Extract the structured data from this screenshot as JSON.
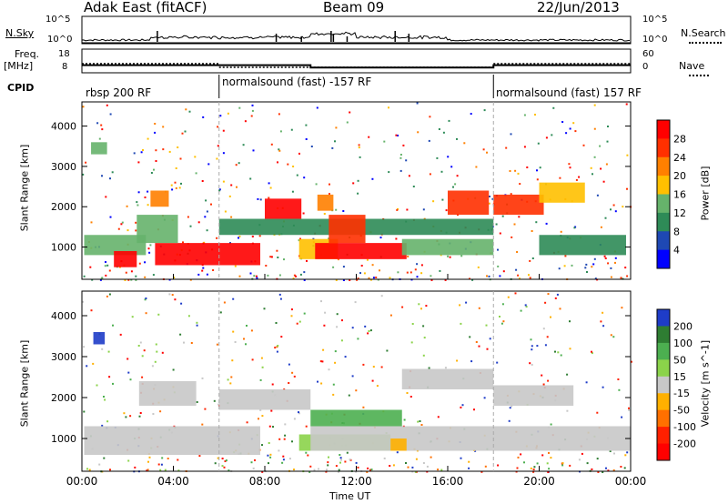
{
  "header": {
    "radar": "Adak East (fitACF)",
    "beam": "Beam 09",
    "date": "22/Jun/2013"
  },
  "top_panels": {
    "nsky_label": "N.Sky",
    "nsky_ticks": [
      "10^5",
      "10^0"
    ],
    "nsearch_label": "N.Search",
    "nsearch_ticks": [
      "10^5",
      "10^0"
    ],
    "freq_label": "Freq.",
    "freq_unit": "[MHz]",
    "freq_ticks": [
      "18",
      "8"
    ],
    "nave_label": "Nave",
    "nave_ticks": [
      "60",
      "0"
    ],
    "cpid_label": "CPID",
    "cpid_segments": [
      {
        "name": "rbsp 200 RF",
        "start_hour": 0
      },
      {
        "name": "normalsound (fast) -157 RF",
        "start_hour": 6
      },
      {
        "name": "normalsound (fast) 157 RF",
        "start_hour": 18
      }
    ],
    "freq_steps": [
      {
        "start_hour": 0,
        "end_hour": 10,
        "mhz": 11.2
      },
      {
        "start_hour": 10,
        "end_hour": 18,
        "mhz": 10.2
      },
      {
        "start_hour": 18,
        "end_hour": 24,
        "mhz": 11.2
      }
    ]
  },
  "chart_data": [
    {
      "type": "heatmap",
      "quantity": "Power",
      "ylabel": "Slant Range [km]",
      "yticks": [
        "1000",
        "2000",
        "3000",
        "4000"
      ],
      "ylim": [
        200,
        4600
      ],
      "xlim": [
        0,
        24
      ],
      "colorbar_label": "Power [dB]",
      "colorbar_ticks": [
        "4",
        "8",
        "12",
        "16",
        "20",
        "24",
        "28"
      ],
      "colors": [
        "#0000ff",
        "#1e48b4",
        "#2e8b57",
        "#66b36b",
        "#ffc000",
        "#ff8000",
        "#ff3000",
        "#ff0000"
      ],
      "regions": [
        {
          "start_hour": 0.1,
          "end_hour": 2.8,
          "range_low": 800,
          "range_high": 1300,
          "level": 3
        },
        {
          "start_hour": 1.4,
          "end_hour": 2.4,
          "range_low": 500,
          "range_high": 900,
          "level": 7
        },
        {
          "start_hour": 3.2,
          "end_hour": 7.8,
          "range_low": 550,
          "range_high": 1100,
          "level": 7
        },
        {
          "start_hour": 2.4,
          "end_hour": 4.2,
          "range_low": 1100,
          "range_high": 1800,
          "level": 3
        },
        {
          "start_hour": 3.0,
          "end_hour": 3.8,
          "range_low": 2000,
          "range_high": 2400,
          "level": 5
        },
        {
          "start_hour": 0.4,
          "end_hour": 1.1,
          "range_low": 3300,
          "range_high": 3600,
          "level": 3
        },
        {
          "start_hour": 6.0,
          "end_hour": 18.0,
          "range_low": 1300,
          "range_high": 1700,
          "level": 2
        },
        {
          "start_hour": 8.0,
          "end_hour": 9.6,
          "range_low": 1700,
          "range_high": 2200,
          "level": 7
        },
        {
          "start_hour": 9.5,
          "end_hour": 11.2,
          "range_low": 700,
          "range_high": 1200,
          "level": 4
        },
        {
          "start_hour": 10.2,
          "end_hour": 14.2,
          "range_low": 700,
          "range_high": 1100,
          "level": 7
        },
        {
          "start_hour": 10.8,
          "end_hour": 12.4,
          "range_low": 1100,
          "range_high": 1800,
          "level": 6
        },
        {
          "start_hour": 10.3,
          "end_hour": 11.0,
          "range_low": 1900,
          "range_high": 2300,
          "level": 5
        },
        {
          "start_hour": 14.0,
          "end_hour": 18.0,
          "range_low": 800,
          "range_high": 1200,
          "level": 3
        },
        {
          "start_hour": 16.0,
          "end_hour": 17.8,
          "range_low": 1800,
          "range_high": 2400,
          "level": 6
        },
        {
          "start_hour": 18.0,
          "end_hour": 20.2,
          "range_low": 1800,
          "range_high": 2300,
          "level": 6
        },
        {
          "start_hour": 20.0,
          "end_hour": 23.8,
          "range_low": 800,
          "range_high": 1300,
          "level": 2
        },
        {
          "start_hour": 20.0,
          "end_hour": 22.0,
          "range_low": 2100,
          "range_high": 2600,
          "level": 4
        }
      ]
    },
    {
      "type": "heatmap",
      "quantity": "Velocity",
      "ylabel": "Slant Range [km]",
      "yticks": [
        "1000",
        "2000",
        "3000",
        "4000"
      ],
      "ylim": [
        200,
        4600
      ],
      "xlim": [
        0,
        24
      ],
      "xticks": [
        "00:00",
        "04:00",
        "08:00",
        "12:00",
        "16:00",
        "20:00",
        "00:00"
      ],
      "xlabel": "Time UT",
      "colorbar_label": "Velocity [m s^-1]",
      "colorbar_ticks": [
        "200",
        "100",
        "50",
        "15",
        "-15",
        "-50",
        "-100",
        "-200"
      ],
      "colors": [
        "#1e3cc8",
        "#2e7d32",
        "#4caf50",
        "#8bd34a",
        "#c8c8c8",
        "#ffb000",
        "#ff7000",
        "#ff2000",
        "#ff0000"
      ],
      "regions": [
        {
          "start_hour": 0.1,
          "end_hour": 7.8,
          "range_low": 600,
          "range_high": 1300,
          "level": 4
        },
        {
          "start_hour": 2.5,
          "end_hour": 5.0,
          "range_low": 1800,
          "range_high": 2400,
          "level": 4
        },
        {
          "start_hour": 6.0,
          "end_hour": 10.0,
          "range_low": 1700,
          "range_high": 2200,
          "level": 4
        },
        {
          "start_hour": 0.5,
          "end_hour": 1.0,
          "range_low": 3300,
          "range_high": 3600,
          "level": 0
        },
        {
          "start_hour": 9.5,
          "end_hour": 13.5,
          "range_low": 700,
          "range_high": 1100,
          "level": 3
        },
        {
          "start_hour": 10.0,
          "end_hour": 14.0,
          "range_low": 1300,
          "range_high": 1700,
          "level": 2
        },
        {
          "start_hour": 10.0,
          "end_hour": 24.0,
          "range_low": 700,
          "range_high": 1300,
          "level": 4
        },
        {
          "start_hour": 14.0,
          "end_hour": 18.0,
          "range_low": 2200,
          "range_high": 2700,
          "level": 4
        },
        {
          "start_hour": 18.0,
          "end_hour": 21.5,
          "range_low": 1800,
          "range_high": 2300,
          "level": 4
        },
        {
          "start_hour": 13.5,
          "end_hour": 14.2,
          "range_low": 700,
          "range_high": 1000,
          "level": 5
        }
      ]
    }
  ],
  "axis": {
    "xlabel": "Time UT"
  }
}
